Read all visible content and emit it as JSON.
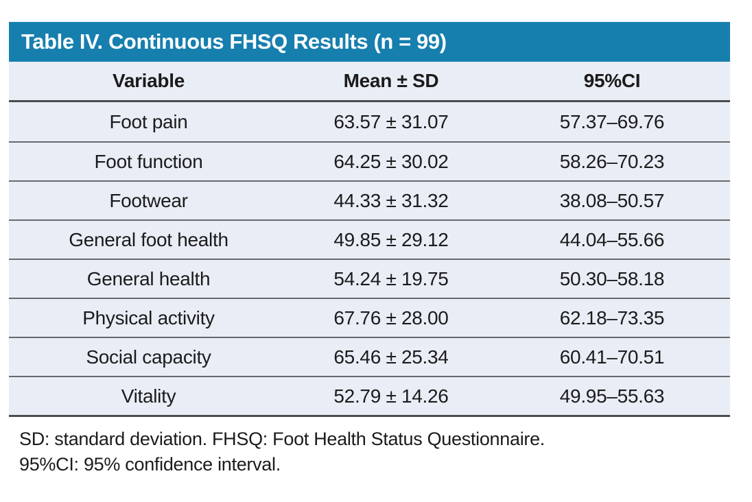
{
  "table": {
    "title": "Table IV. Continuous FHSQ Results (n = 99)",
    "columns": [
      "Variable",
      "Mean ± SD",
      "95%CI"
    ],
    "rows": [
      {
        "variable": "Foot pain",
        "mean_sd": "63.57 ± 31.07",
        "ci": "57.37–69.76"
      },
      {
        "variable": "Foot function",
        "mean_sd": "64.25 ± 30.02",
        "ci": "58.26–70.23"
      },
      {
        "variable": "Footwear",
        "mean_sd": "44.33 ± 31.32",
        "ci": "38.08–50.57"
      },
      {
        "variable": "General foot health",
        "mean_sd": "49.85 ± 29.12",
        "ci": "44.04–55.66"
      },
      {
        "variable": "General health",
        "mean_sd": "54.24 ± 19.75",
        "ci": "50.30–58.18"
      },
      {
        "variable": "Physical activity",
        "mean_sd": "67.76 ± 28.00",
        "ci": "62.18–73.35"
      },
      {
        "variable": "Social capacity",
        "mean_sd": "65.46 ± 25.34",
        "ci": "60.41–70.51"
      },
      {
        "variable": "Vitality",
        "mean_sd": "52.79 ± 14.26",
        "ci": "49.95–55.63"
      }
    ],
    "footnotes": [
      "SD: standard deviation. FHSQ: Foot Health Status Questionnaire.",
      "95%CI: 95% confidence interval."
    ]
  },
  "colors": {
    "title_bar_bg": "#167fae",
    "title_text": "#ffffff",
    "row_bg": "#e9edf6",
    "border_dark": "#4b4c4e",
    "border_light": "#66686c",
    "text": "#1b1b1b"
  }
}
